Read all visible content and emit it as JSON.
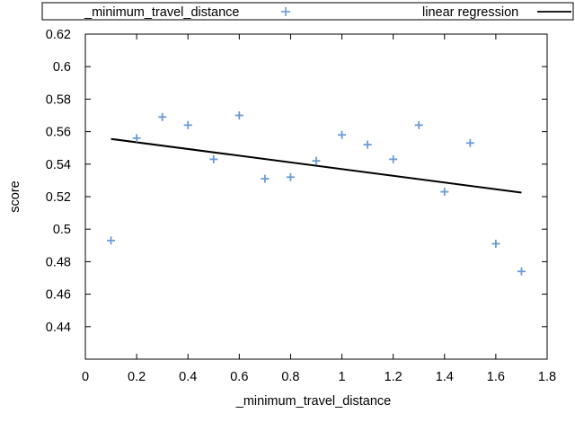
{
  "chart_data": {
    "type": "scatter",
    "title": "",
    "xlabel": "_minimum_travel_distance",
    "ylabel": "score",
    "xlim": [
      0,
      1.8
    ],
    "ylim": [
      0.42,
      0.62
    ],
    "xticks": [
      0,
      0.2,
      0.4,
      0.6,
      0.8,
      1,
      1.2,
      1.4,
      1.6,
      1.8
    ],
    "xtick_labels": [
      "0",
      "0.2",
      "0.4",
      "0.6",
      "0.8",
      "1",
      "1.2",
      "1.4",
      "1.6",
      "1.8"
    ],
    "yticks": [
      0.44,
      0.46,
      0.48,
      0.5,
      0.52,
      0.54,
      0.56,
      0.58,
      0.6,
      0.62
    ],
    "ytick_labels": [
      "0.44",
      "0.46",
      "0.48",
      "0.5",
      "0.52",
      "0.54",
      "0.56",
      "0.58",
      "0.6",
      "0.62"
    ],
    "grid": false,
    "legend_position": "top",
    "series": [
      {
        "name": "_minimum_travel_distance",
        "kind": "scatter",
        "marker": "plus",
        "color": "#6b9bd6",
        "x": [
          0.1,
          0.2,
          0.3,
          0.4,
          0.5,
          0.6,
          0.7,
          0.8,
          0.9,
          1.0,
          1.1,
          1.2,
          1.3,
          1.4,
          1.5,
          1.6,
          1.7
        ],
        "y": [
          0.493,
          0.556,
          0.569,
          0.564,
          0.543,
          0.57,
          0.531,
          0.532,
          0.542,
          0.558,
          0.552,
          0.543,
          0.564,
          0.523,
          0.553,
          0.491,
          0.474
        ]
      },
      {
        "name": "linear regression",
        "kind": "line",
        "color": "#000000",
        "x": [
          0.1,
          1.7
        ],
        "y": [
          0.5555,
          0.5225
        ]
      }
    ]
  }
}
